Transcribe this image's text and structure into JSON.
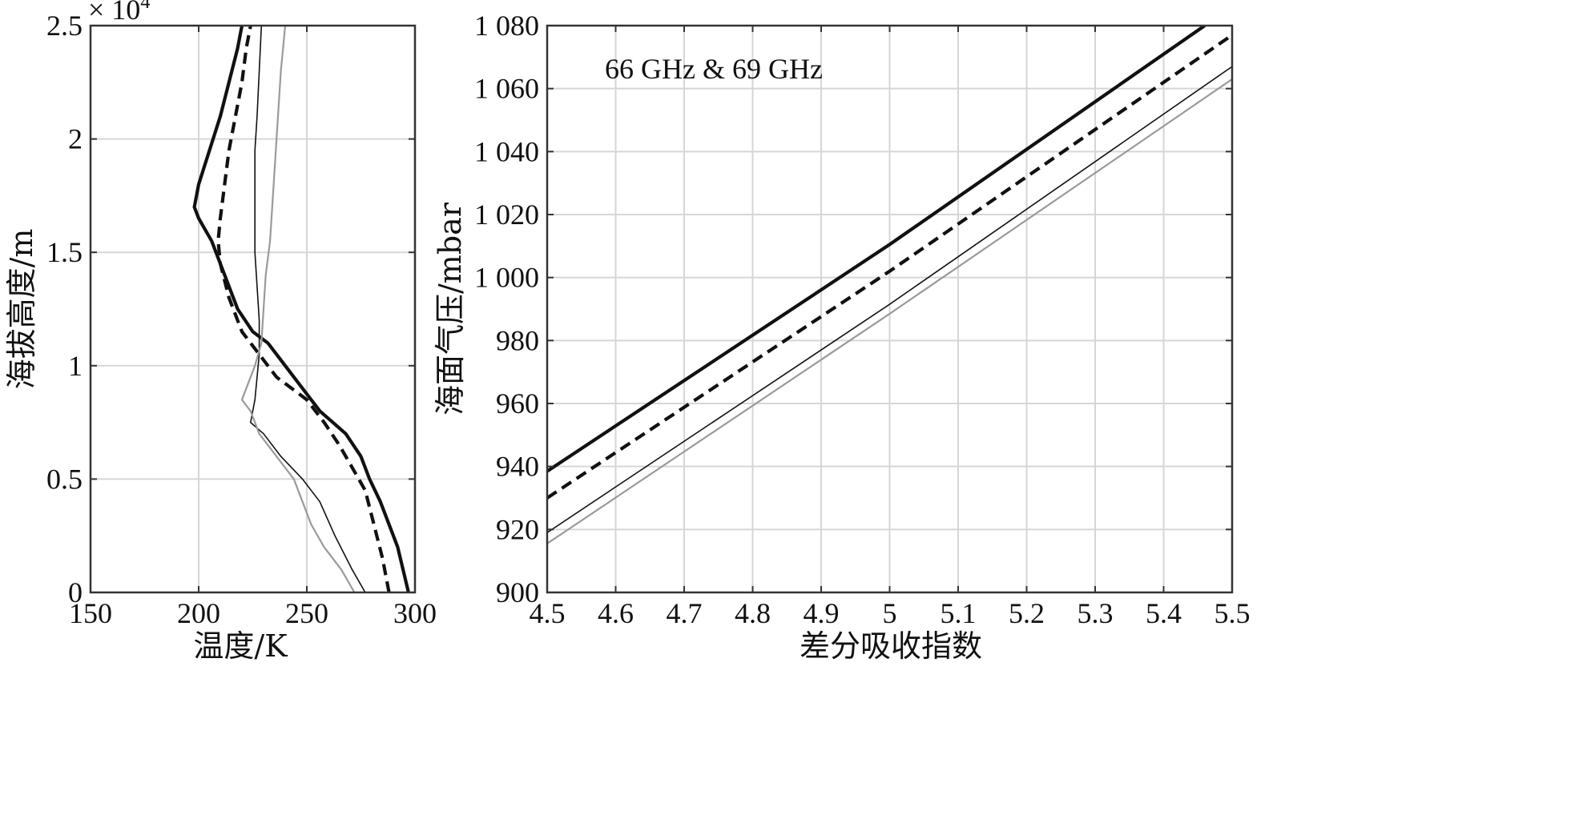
{
  "chart_data": [
    {
      "type": "line",
      "xlabel": "温度/K",
      "ylabel": "海拔高度/m",
      "xlim": [
        150,
        300
      ],
      "ylim": [
        0,
        25000
      ],
      "xticks": [
        150,
        200,
        250,
        300
      ],
      "xtick_labels": [
        "150",
        "200",
        "250",
        "300"
      ],
      "yticks": [
        0,
        5000,
        10000,
        15000,
        20000,
        25000
      ],
      "ytick_labels": [
        "0",
        "0.5",
        "1",
        "1.5",
        "2",
        "2.5"
      ],
      "y_multiplier_base": "× 10",
      "y_multiplier_exponent": "4",
      "grid": true,
      "series": [
        {
          "style": "thick-solid",
          "color": "#111111",
          "points": [
            [
              297,
              0
            ],
            [
              292,
              2000
            ],
            [
              288,
              3000
            ],
            [
              284,
              4000
            ],
            [
              279,
              5000
            ],
            [
              275,
              6000
            ],
            [
              268,
              7000
            ],
            [
              262,
              7500
            ],
            [
              256,
              8000
            ],
            [
              248,
              9000
            ],
            [
              240,
              10000
            ],
            [
              232,
              11000
            ],
            [
              225,
              11500
            ],
            [
              218,
              12500
            ],
            [
              212,
              14000
            ],
            [
              206,
              15500
            ],
            [
              200,
              16500
            ],
            [
              198,
              17000
            ],
            [
              200,
              18000
            ],
            [
              205,
              19500
            ],
            [
              210,
              21000
            ],
            [
              214,
              22500
            ],
            [
              218,
              24000
            ],
            [
              220,
              25000
            ]
          ]
        },
        {
          "style": "thick-dashed",
          "color": "#111111",
          "points": [
            [
              288,
              0
            ],
            [
              285,
              1500
            ],
            [
              281,
              3000
            ],
            [
              277,
              4500
            ],
            [
              271,
              5500
            ],
            [
              265,
              6500
            ],
            [
              258,
              7500
            ],
            [
              250,
              8500
            ],
            [
              243,
              9000
            ],
            [
              236,
              9500
            ],
            [
              228,
              10500
            ],
            [
              220,
              11500
            ],
            [
              214,
              13000
            ],
            [
              210,
              14500
            ],
            [
              209,
              15500
            ],
            [
              210,
              16500
            ],
            [
              212,
              18000
            ],
            [
              214,
              19500
            ],
            [
              217,
              21000
            ],
            [
              220,
              22500
            ],
            [
              222,
              24000
            ],
            [
              224,
              25000
            ]
          ]
        },
        {
          "style": "thin-solid",
          "color": "#111111",
          "points": [
            [
              277,
              0
            ],
            [
              271,
              1000
            ],
            [
              263,
              2500
            ],
            [
              256,
              4000
            ],
            [
              248,
              5000
            ],
            [
              238,
              6000
            ],
            [
              230,
              7000
            ],
            [
              224,
              7500
            ],
            [
              226,
              8500
            ],
            [
              227,
              9500
            ],
            [
              228,
              10500
            ],
            [
              228,
              12000
            ],
            [
              227,
              13500
            ],
            [
              226,
              15000
            ],
            [
              226,
              16500
            ],
            [
              226,
              18000
            ],
            [
              226,
              19500
            ],
            [
              227,
              21000
            ],
            [
              228,
              23000
            ],
            [
              229,
              25000
            ]
          ]
        },
        {
          "style": "thin-gray",
          "color": "#9a9a9a",
          "points": [
            [
              272,
              0
            ],
            [
              266,
              1000
            ],
            [
              258,
              2000
            ],
            [
              252,
              3000
            ],
            [
              248,
              4000
            ],
            [
              244,
              5000
            ],
            [
              236,
              6000
            ],
            [
              228,
              7000
            ],
            [
              224,
              8000
            ],
            [
              220,
              8500
            ],
            [
              226,
              10000
            ],
            [
              229,
              11000
            ],
            [
              230,
              12500
            ],
            [
              231,
              14000
            ],
            [
              233,
              15500
            ],
            [
              234,
              17000
            ],
            [
              235,
              18500
            ],
            [
              236,
              20000
            ],
            [
              237,
              21500
            ],
            [
              238,
              23000
            ],
            [
              240,
              25000
            ]
          ]
        }
      ]
    },
    {
      "type": "line",
      "annotation": "66 GHz & 69 GHz",
      "xlabel": "差分吸收指数",
      "ylabel": "海面气压/mbar",
      "xlim": [
        4.5,
        5.5
      ],
      "ylim": [
        900,
        1080
      ],
      "xticks": [
        4.5,
        4.6,
        4.7,
        4.8,
        4.9,
        5.0,
        5.1,
        5.2,
        5.3,
        5.4,
        5.5
      ],
      "xtick_labels": [
        "4.5",
        "4.6",
        "4.7",
        "4.8",
        "4.9",
        "5",
        "5.1",
        "5.2",
        "5.3",
        "5.4",
        "5.5"
      ],
      "yticks": [
        900,
        920,
        940,
        960,
        980,
        1000,
        1020,
        1040,
        1060,
        1080
      ],
      "ytick_labels": [
        "900",
        "920",
        "940",
        "960",
        "980",
        "1 000",
        "1 020",
        "1 040",
        "1 060",
        "1 080"
      ],
      "grid": true,
      "series": [
        {
          "style": "thick-solid",
          "color": "#111111",
          "points": [
            [
              4.5,
              938.5
            ],
            [
              5.0,
              1010.5
            ],
            [
              5.46,
              1080
            ]
          ]
        },
        {
          "style": "thick-dashed",
          "color": "#111111",
          "points": [
            [
              4.5,
              930
            ],
            [
              5.0,
              1002
            ],
            [
              5.5,
              1077
            ]
          ]
        },
        {
          "style": "thin-solid",
          "color": "#111111",
          "points": [
            [
              4.5,
              919
            ],
            [
              5.0,
              991.5
            ],
            [
              5.5,
              1067
            ]
          ]
        },
        {
          "style": "thin-gray",
          "color": "#9a9a9a",
          "points": [
            [
              4.5,
              915.5
            ],
            [
              5.0,
              988.5
            ],
            [
              5.5,
              1063
            ]
          ]
        }
      ]
    }
  ]
}
